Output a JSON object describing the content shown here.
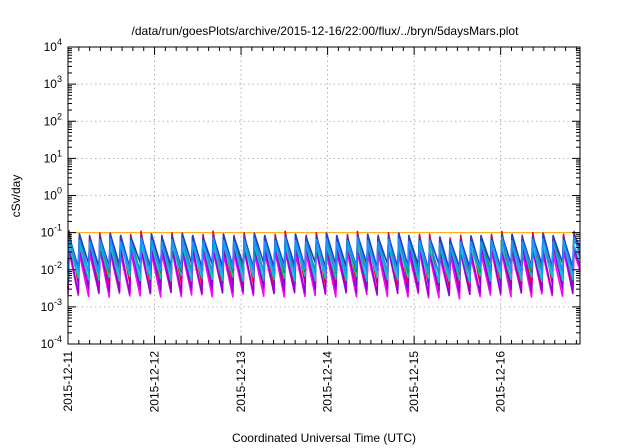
{
  "chart_data": {
    "type": "line",
    "title": "/data/run/goesPlots/archive/2015-12-16/22:00/flux/../bryn/5daysMars.plot",
    "xlabel": "Coordinated Universal Time (UTC)",
    "ylabel": "cSv/day",
    "yscale": "log",
    "ylim": [
      0.0001,
      10000
    ],
    "xlim": [
      "2015-12-11T00:00",
      "2015-12-16T22:00"
    ],
    "x_ticks": [
      "2015-12-11",
      "2015-12-12",
      "2015-12-13",
      "2015-12-14",
      "2015-12-15",
      "2015-12-16"
    ],
    "y_ticks": [
      {
        "value": 0.0001,
        "base": "10",
        "exp": "-4"
      },
      {
        "value": 0.001,
        "base": "10",
        "exp": "-3"
      },
      {
        "value": 0.01,
        "base": "10",
        "exp": "-2"
      },
      {
        "value": 0.1,
        "base": "10",
        "exp": "-1"
      },
      {
        "value": 1,
        "base": "10",
        "exp": "0"
      },
      {
        "value": 10,
        "base": "10",
        "exp": "1"
      },
      {
        "value": 100,
        "base": "10",
        "exp": "2"
      },
      {
        "value": 1000,
        "base": "10",
        "exp": "3"
      },
      {
        "value": 10000,
        "base": "10",
        "exp": "4"
      }
    ],
    "grid": true,
    "reference_line": {
      "value": 0.1,
      "color": "#ffa500"
    },
    "pattern": {
      "cycles_per_day": 8.4
    },
    "series": [
      {
        "color": "#ff0000",
        "peak": 0.11,
        "trough": 0.0045
      },
      {
        "color": "#ff00ff",
        "peak": 0.035,
        "trough": 0.0026
      },
      {
        "color": "#9400d3",
        "peak": 0.05,
        "trough": 0.0032
      },
      {
        "color": "#00c8c8",
        "peak": 0.06,
        "trough": 0.007
      },
      {
        "color": "#00a000",
        "peak": 0.085,
        "trough": 0.012
      },
      {
        "color": "#1f3fd0",
        "peak": 0.1,
        "trough": 0.016
      },
      {
        "color": "#1e90ff",
        "peak": 0.075,
        "trough": 0.011
      }
    ]
  }
}
